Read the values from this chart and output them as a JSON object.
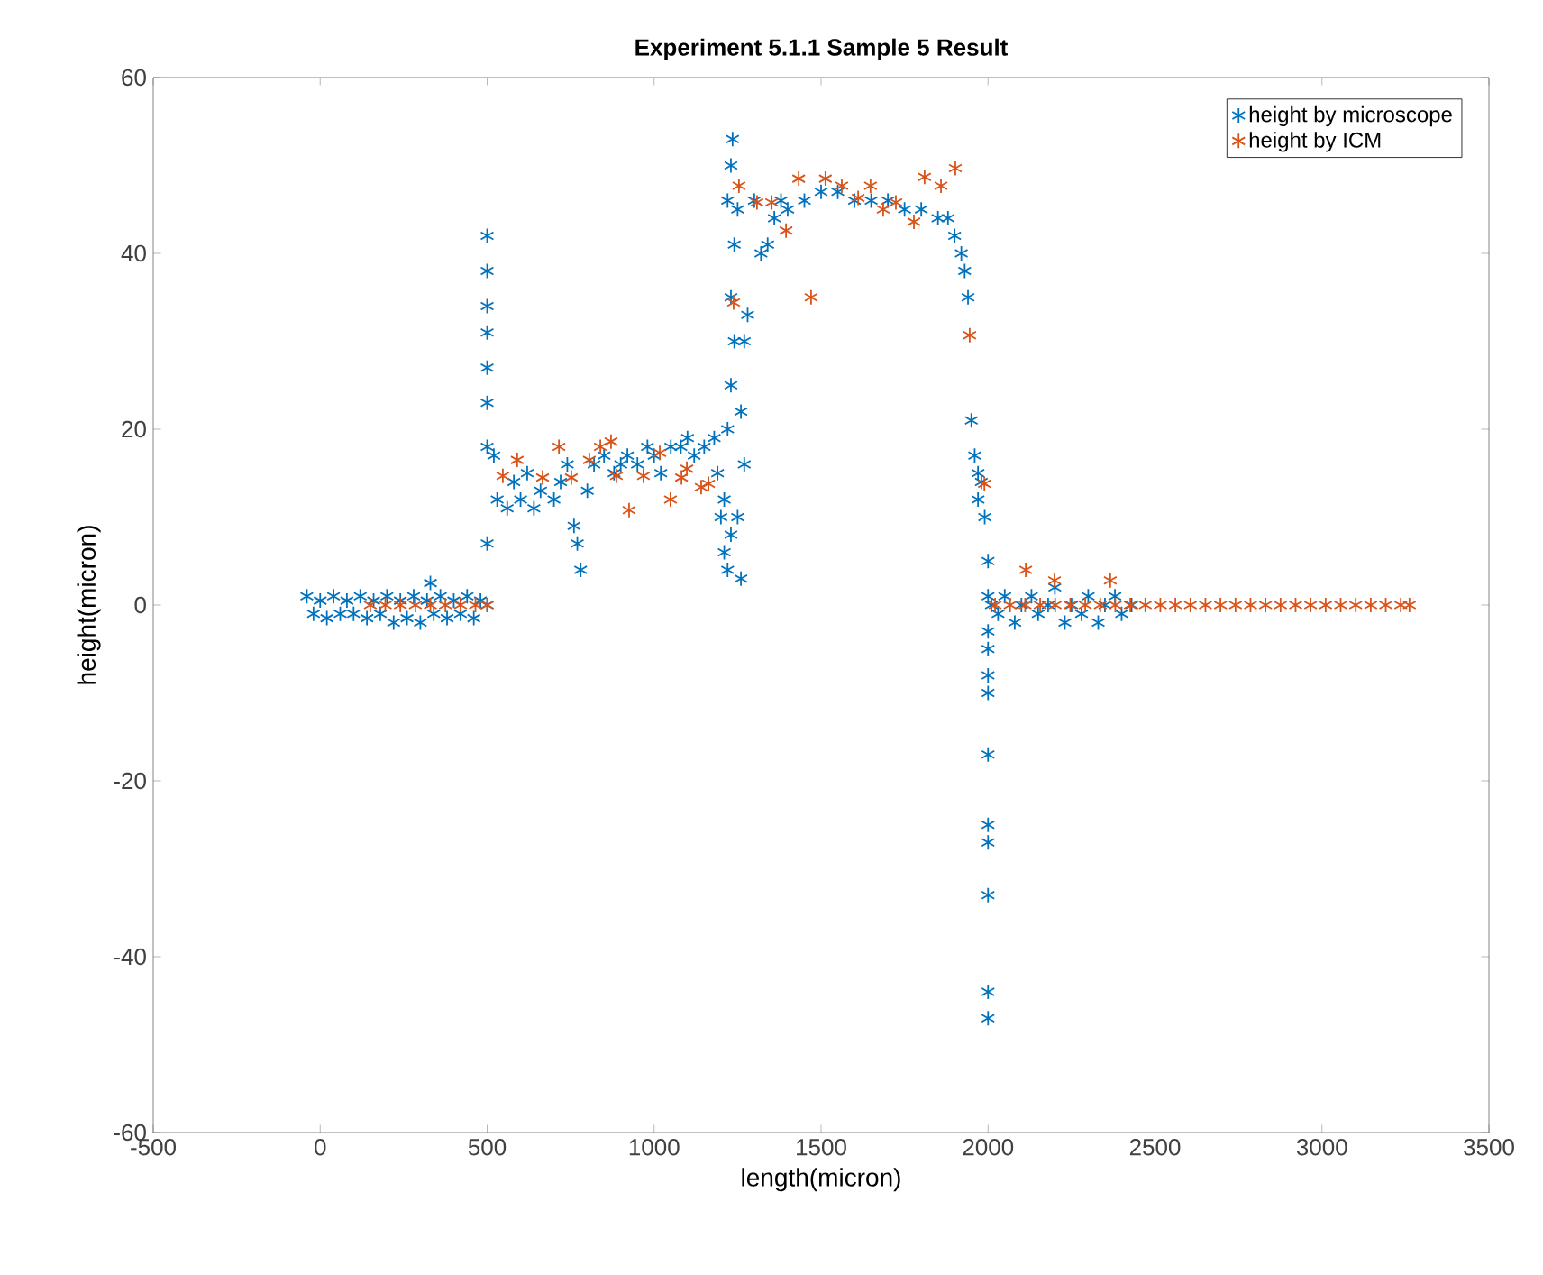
{
  "chart_data": {
    "type": "scatter",
    "title": "Experiment 5.1.1 Sample 5 Result",
    "xlabel": "length(micron)",
    "ylabel": "height(micron)",
    "xlim": [
      -500,
      3500
    ],
    "xticks": [
      -500,
      0,
      500,
      1000,
      1500,
      2000,
      2500,
      3000,
      3500
    ],
    "ylim": [
      -60,
      60
    ],
    "yticks": [
      -60,
      -40,
      -20,
      0,
      20,
      40,
      60
    ],
    "legend": "top right",
    "marker": "cross",
    "grid": false,
    "series": [
      {
        "name": "height by microscope",
        "color": "#0072bd",
        "x": [
          -40,
          -20,
          0,
          20,
          40,
          60,
          80,
          100,
          120,
          140,
          160,
          180,
          200,
          220,
          240,
          260,
          280,
          300,
          320,
          330,
          340,
          360,
          380,
          400,
          420,
          440,
          460,
          480,
          500,
          500,
          500,
          500,
          500,
          500,
          500,
          500,
          500,
          520,
          530,
          560,
          580,
          600,
          620,
          640,
          660,
          700,
          720,
          740,
          760,
          770,
          780,
          800,
          820,
          850,
          880,
          900,
          920,
          950,
          980,
          1000,
          1020,
          1050,
          1080,
          1100,
          1120,
          1150,
          1180,
          1190,
          1200,
          1210,
          1220,
          1230,
          1210,
          1220,
          1230,
          1240,
          1230,
          1240,
          1230,
          1235,
          1220,
          1250,
          1260,
          1270,
          1280,
          1260,
          1270,
          1250,
          1300,
          1320,
          1340,
          1360,
          1380,
          1400,
          1450,
          1500,
          1550,
          1600,
          1650,
          1700,
          1750,
          1800,
          1850,
          1880,
          1900,
          1920,
          1930,
          1940,
          1950,
          1960,
          1970,
          1980,
          1970,
          1990,
          2000,
          2000,
          2000,
          2000,
          2000,
          2000,
          2000,
          2000,
          2000,
          2000,
          2000,
          2000,
          2010,
          2030,
          2050,
          2080,
          2100,
          2130,
          2150,
          2180,
          2200,
          2230,
          2250,
          2280,
          2300,
          2330,
          2350,
          2380,
          2400,
          2430
        ],
        "values": [
          1,
          -1,
          0.5,
          -1.5,
          1,
          -1,
          0.5,
          -1,
          1,
          -1.5,
          0.5,
          -1,
          1,
          -2,
          0.5,
          -1.5,
          1,
          -2,
          0.5,
          2.5,
          -1,
          1,
          -1.5,
          0.5,
          -1,
          1,
          -1.5,
          0.5,
          0,
          7,
          18,
          23,
          27,
          31,
          34,
          38,
          42,
          17,
          12,
          11,
          14,
          12,
          15,
          11,
          13,
          12,
          14,
          16,
          9,
          7,
          4,
          13,
          16,
          17,
          15,
          16,
          17,
          16,
          18,
          17,
          15,
          18,
          18,
          19,
          17,
          18,
          19,
          15,
          10,
          6,
          4,
          8,
          12,
          20,
          25,
          30,
          35,
          41,
          50,
          53,
          46,
          45,
          3,
          30,
          33,
          22,
          16,
          10,
          46,
          40,
          41,
          44,
          46,
          45,
          46,
          47,
          47,
          46,
          46,
          46,
          45,
          45,
          44,
          44,
          42,
          40,
          38,
          35,
          21,
          17,
          15,
          14,
          12,
          10,
          5,
          1,
          -3,
          -5,
          -8,
          -10,
          -17,
          -25,
          -27,
          -33,
          -44,
          -47,
          0,
          -1,
          1,
          -2,
          0,
          1,
          -1,
          0,
          2,
          -2,
          0,
          -1,
          1,
          -2,
          0,
          1,
          -1,
          0
        ]
      },
      {
        "name": "height by ICM",
        "color": "#d95319",
        "x": [
          150,
          195,
          240,
          285,
          330,
          375,
          420,
          465,
          500,
          547,
          590,
          666,
          715,
          752,
          806,
          839,
          871,
          887,
          925,
          968,
          1017,
          1049,
          1082,
          1098,
          1141,
          1163,
          1238,
          1254,
          1308,
          1352,
          1395,
          1433,
          1470,
          1513,
          1562,
          1611,
          1648,
          1686,
          1724,
          1778,
          1810,
          1859,
          1902,
          1945,
          1989,
          2113,
          2199,
          2366,
          2021,
          2066,
          2111,
          2156,
          2201,
          2246,
          2291,
          2336,
          2381,
          2426,
          2471,
          2516,
          2561,
          2606,
          2651,
          2696,
          2741,
          2786,
          2831,
          2876,
          2921,
          2966,
          3011,
          3056,
          3101,
          3146,
          3191,
          3236,
          3262
        ],
        "values": [
          0,
          0,
          0,
          0,
          0,
          0,
          0,
          0,
          0,
          14.7,
          16.5,
          14.5,
          18,
          14.5,
          16.5,
          18,
          18.6,
          14.7,
          10.8,
          14.7,
          17.3,
          12,
          14.5,
          15.5,
          13.4,
          13.8,
          34.4,
          47.7,
          45.8,
          45.8,
          42.6,
          48.5,
          35,
          48.5,
          47.7,
          46.3,
          47.7,
          45,
          45.8,
          43.6,
          48.7,
          47.7,
          49.7,
          30.7,
          13.8,
          4,
          2.8,
          2.8,
          0,
          0,
          0,
          0,
          0,
          0,
          0,
          0,
          0,
          0,
          0,
          0,
          0,
          0,
          0,
          0,
          0,
          0,
          0,
          0,
          0,
          0,
          0,
          0,
          0,
          0,
          0,
          0,
          0
        ]
      }
    ]
  }
}
